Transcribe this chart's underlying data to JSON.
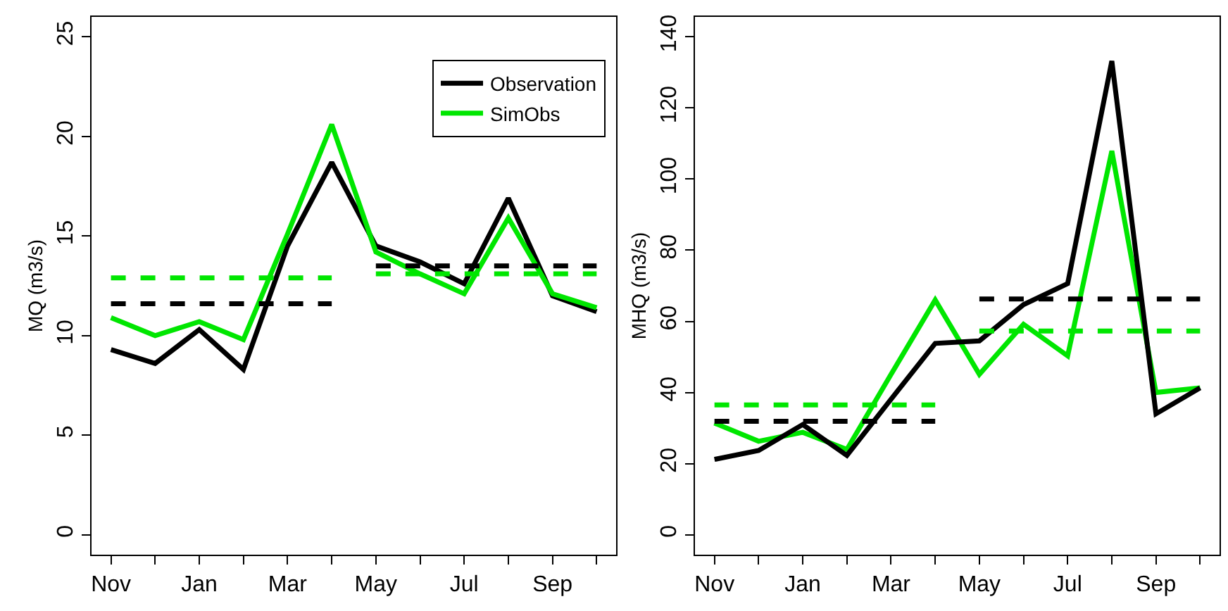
{
  "chart_data": [
    {
      "type": "line",
      "ylabel": "MQ (m3/s)",
      "categories": [
        "Nov",
        null,
        "Jan",
        null,
        "Mar",
        null,
        "May",
        null,
        "Jul",
        null,
        "Sep",
        null
      ],
      "ylim": [
        -1,
        26
      ],
      "yticks": [
        0,
        5,
        10,
        15,
        20,
        25
      ],
      "legend": "top right",
      "marker": "none",
      "series": [
        {
          "name": "Observation",
          "color": "#000000",
          "line_style": "solid",
          "values": [
            9.3,
            8.6,
            10.3,
            8.3,
            14.5,
            18.7,
            14.5,
            13.7,
            12.6,
            16.9,
            12.0,
            11.2
          ]
        },
        {
          "name": "SimObs",
          "color": "#00e600",
          "line_style": "solid",
          "values": [
            10.9,
            10.0,
            10.7,
            9.8,
            15.1,
            20.6,
            14.2,
            13.1,
            12.1,
            15.9,
            12.1,
            11.4
          ]
        },
        {
          "color": "#000000",
          "line_style": "dashed",
          "values": [
            11.6,
            11.6,
            11.6,
            11.6,
            11.6,
            11.6,
            null,
            null,
            null,
            null,
            null,
            null
          ]
        },
        {
          "color": "#00e600",
          "line_style": "dashed",
          "values": [
            12.9,
            12.9,
            12.9,
            12.9,
            12.9,
            12.9,
            null,
            null,
            null,
            null,
            null,
            null
          ]
        },
        {
          "color": "#000000",
          "line_style": "dashed",
          "values": [
            null,
            null,
            null,
            null,
            null,
            null,
            13.5,
            13.5,
            13.5,
            13.5,
            13.5,
            13.5
          ]
        },
        {
          "color": "#00e600",
          "line_style": "dashed",
          "values": [
            null,
            null,
            null,
            null,
            null,
            null,
            13.1,
            13.1,
            13.1,
            13.1,
            13.1,
            13.1
          ]
        }
      ]
    },
    {
      "type": "line",
      "ylabel": "MHQ (m3/s)",
      "categories": [
        "Nov",
        null,
        "Jan",
        null,
        "Mar",
        null,
        "May",
        null,
        "Jul",
        null,
        "Sep",
        null
      ],
      "ylim": [
        -5.6,
        145.6
      ],
      "yticks": [
        0,
        20,
        40,
        60,
        80,
        100,
        120,
        140
      ],
      "marker": "none",
      "series": [
        {
          "color": "#00e600",
          "line_style": "solid",
          "values": [
            31.4,
            26.3,
            28.8,
            24.0,
            45.1,
            66.0,
            45.1,
            59.2,
            50.3,
            107.9,
            40.0,
            41.3
          ]
        },
        {
          "color": "#000000",
          "line_style": "solid",
          "values": [
            21.2,
            23.7,
            31.0,
            22.3,
            38.1,
            53.8,
            54.5,
            64.7,
            70.6,
            133.2,
            34.0,
            41.3
          ]
        },
        {
          "color": "#000000",
          "line_style": "dashed",
          "values": [
            31.9,
            31.9,
            31.9,
            31.9,
            31.9,
            31.9,
            null,
            null,
            null,
            null,
            null,
            null
          ]
        },
        {
          "color": "#00e600",
          "line_style": "dashed",
          "values": [
            36.5,
            36.5,
            36.5,
            36.5,
            36.5,
            36.5,
            null,
            null,
            null,
            null,
            null,
            null
          ]
        },
        {
          "color": "#000000",
          "line_style": "dashed",
          "values": [
            null,
            null,
            null,
            null,
            null,
            null,
            66.3,
            66.3,
            66.3,
            66.3,
            66.3,
            66.3
          ]
        },
        {
          "color": "#00e600",
          "line_style": "dashed",
          "values": [
            null,
            null,
            null,
            null,
            null,
            null,
            57.3,
            57.3,
            57.3,
            57.3,
            57.3,
            57.3
          ]
        }
      ]
    }
  ]
}
